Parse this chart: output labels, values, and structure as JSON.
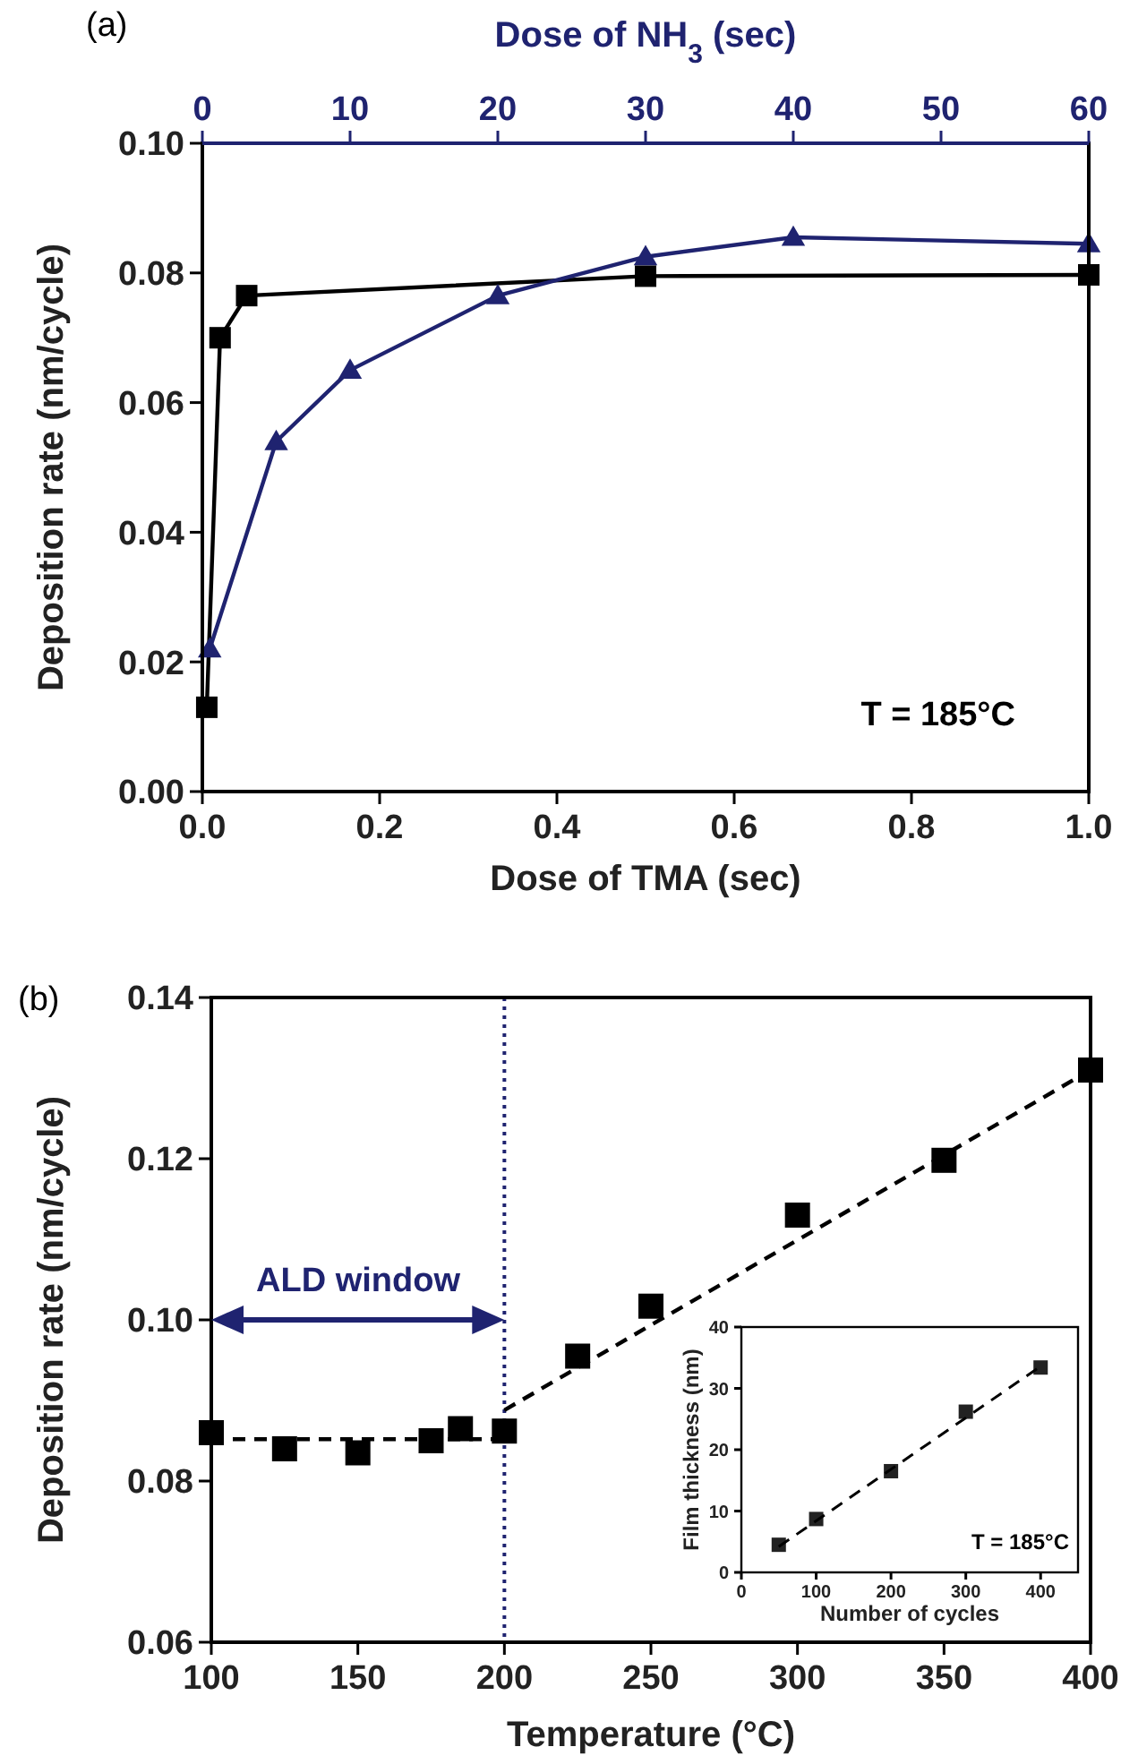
{
  "chart_data": [
    {
      "type": "line",
      "xlabel": "Dose of TMA (sec)",
      "ylabel": "Deposition rate (nm/cycle)",
      "x2label": "Dose of NH$_{3}$ (sec)",
      "xlim": [
        0,
        1
      ],
      "xticks": [
        {
          "value": 0,
          "label": "0.0"
        },
        {
          "value": 0.2,
          "label": "0.2"
        },
        {
          "value": 0.4,
          "label": "0.4"
        },
        {
          "value": 0.6,
          "label": "0.6"
        },
        {
          "value": 0.8,
          "label": "0.8"
        },
        {
          "value": 1,
          "label": "1.0"
        }
      ],
      "x2lim": [
        0,
        60
      ],
      "x2ticks": [
        0,
        10,
        20,
        30,
        40,
        50,
        60
      ],
      "ylim": [
        0,
        0.1
      ],
      "yticks": [
        {
          "value": 0,
          "label": "0.00"
        },
        {
          "value": 0.02,
          "label": "0.02"
        },
        {
          "value": 0.04,
          "label": "0.04"
        },
        {
          "value": 0.06,
          "label": "0.06"
        },
        {
          "value": 0.08,
          "label": "0.08"
        },
        {
          "value": 0.1,
          "label": "0.10"
        }
      ],
      "series": [
        {
          "color": "#000000",
          "marker": "square",
          "line_style": "solid",
          "x": [
            0.005,
            0.02,
            0.05,
            0.5,
            1
          ],
          "values": [
            0.013,
            0.07,
            0.0765,
            0.0795,
            0.0797
          ]
        },
        {
          "color": "#1f2370",
          "marker": "triangle",
          "line_style": "solid",
          "axis": "x2",
          "x": [
            0.5,
            5,
            10,
            20,
            30,
            40,
            60
          ],
          "values": [
            0.022,
            0.054,
            0.065,
            0.0765,
            0.0825,
            0.0855,
            0.0845
          ]
        }
      ],
      "annotations": [
        "(a)",
        "T = 185°C"
      ]
    },
    {
      "type": "scatter",
      "xlabel": "Temperature (°C)",
      "ylabel": "Deposition rate (nm/cycle)",
      "xlim": [
        100,
        400
      ],
      "xticks": [
        100,
        150,
        200,
        250,
        300,
        350,
        400
      ],
      "ylim": [
        0.06,
        0.14
      ],
      "yticks": [
        {
          "value": 0.06,
          "label": "0.06"
        },
        {
          "value": 0.08,
          "label": "0.08"
        },
        {
          "value": 0.1,
          "label": "0.10"
        },
        {
          "value": 0.12,
          "label": "0.12"
        },
        {
          "value": 0.14,
          "label": "0.14"
        }
      ],
      "series": [
        {
          "color": "#000000",
          "marker": "square",
          "x": [
            100,
            125,
            150,
            175,
            185,
            200,
            225,
            250,
            300,
            350,
            400
          ],
          "values": [
            0.086,
            0.084,
            0.0835,
            0.085,
            0.0865,
            0.0862,
            0.0955,
            0.1017,
            0.113,
            0.1198,
            0.131
          ]
        },
        {
          "type": "line",
          "color": "#000000",
          "marker": "none",
          "line_style": "dashed",
          "x": [
            100,
            200
          ],
          "values": [
            0.0852,
            0.0852
          ]
        },
        {
          "type": "line",
          "color": "#000000",
          "marker": "none",
          "line_style": "dashed",
          "x": [
            200,
            400
          ],
          "values": [
            0.0888,
            0.131
          ]
        }
      ],
      "ref_lines": [
        {
          "axis": "x",
          "value": 200,
          "color": "#1f2370",
          "line_style": "dotted"
        }
      ],
      "annotations": [
        "(b)",
        "ALD window"
      ]
    },
    {
      "type": "scatter",
      "xlabel": "Number of cycles",
      "ylabel": "Film thickness (nm)",
      "xlim": [
        0,
        450
      ],
      "xticks": [
        0,
        100,
        200,
        300,
        400
      ],
      "ylim": [
        0,
        40
      ],
      "yticks": [
        0,
        10,
        20,
        30,
        40
      ],
      "series": [
        {
          "color": "#222222",
          "marker": "square",
          "x": [
            50,
            100,
            200,
            300,
            400
          ],
          "values": [
            4.5,
            8.7,
            16.5,
            26.2,
            33.4
          ]
        },
        {
          "type": "line",
          "color": "#000000",
          "marker": "none",
          "line_style": "dashed",
          "x": [
            50,
            400
          ],
          "values": [
            4.2,
            33.6
          ]
        }
      ],
      "annotations": [
        "T = 185°C"
      ]
    }
  ]
}
